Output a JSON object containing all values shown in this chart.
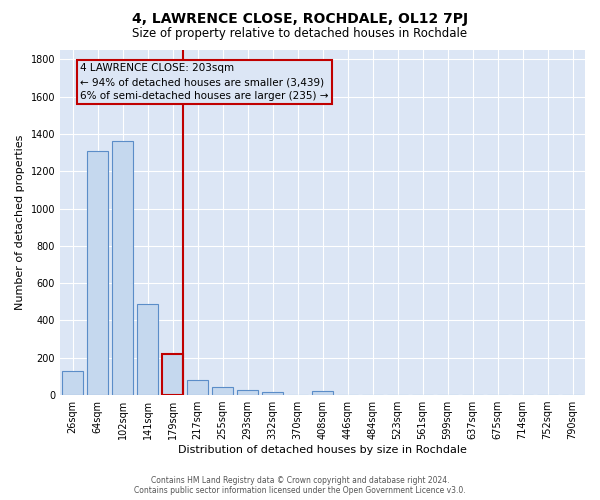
{
  "title": "4, LAWRENCE CLOSE, ROCHDALE, OL12 7PJ",
  "subtitle": "Size of property relative to detached houses in Rochdale",
  "xlabel": "Distribution of detached houses by size in Rochdale",
  "ylabel": "Number of detached properties",
  "footer_line1": "Contains HM Land Registry data © Crown copyright and database right 2024.",
  "footer_line2": "Contains public sector information licensed under the Open Government Licence v3.0.",
  "bar_labels": [
    "26sqm",
    "64sqm",
    "102sqm",
    "141sqm",
    "179sqm",
    "217sqm",
    "255sqm",
    "293sqm",
    "332sqm",
    "370sqm",
    "408sqm",
    "446sqm",
    "484sqm",
    "523sqm",
    "561sqm",
    "599sqm",
    "637sqm",
    "675sqm",
    "714sqm",
    "752sqm",
    "790sqm"
  ],
  "bar_values": [
    130,
    1310,
    1360,
    490,
    220,
    80,
    45,
    28,
    18,
    0,
    20,
    0,
    0,
    0,
    0,
    0,
    0,
    0,
    0,
    0,
    0
  ],
  "bar_color": "#c5d8ee",
  "bar_edge_color": "#5b8dc8",
  "highlight_bar_edge_color": "#c00000",
  "vline_color": "#c00000",
  "annotation_text": "4 LAWRENCE CLOSE: 203sqm\n← 94% of detached houses are smaller (3,439)\n6% of semi-detached houses are larger (235) →",
  "annotation_box_color": "#c00000",
  "ylim": [
    0,
    1850
  ],
  "figure_bg": "#ffffff",
  "axes_bg": "#dce6f5",
  "grid_color": "#ffffff",
  "title_fontsize": 10,
  "subtitle_fontsize": 8.5,
  "axis_label_fontsize": 8,
  "tick_fontsize": 7,
  "annotation_fontsize": 7.5,
  "highlight_bar_index": 4,
  "vline_bar_index": 4
}
